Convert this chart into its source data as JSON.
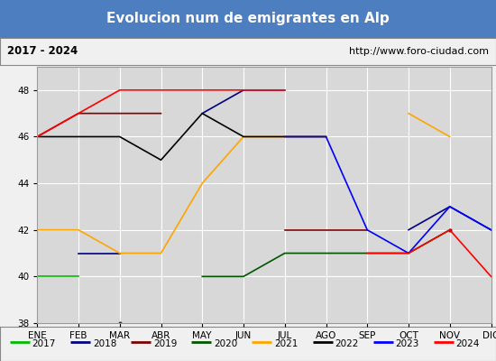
{
  "title": "Evolucion num de emigrantes en Alp",
  "subtitle_left": "2017 - 2024",
  "subtitle_right": "http://www.foro-ciudad.com",
  "xlabel_ticks": [
    "ENE",
    "FEB",
    "MAR",
    "ABR",
    "MAY",
    "JUN",
    "JUL",
    "AGO",
    "SEP",
    "OCT",
    "NOV",
    "DIC"
  ],
  "ylim": [
    38,
    49
  ],
  "yticks": [
    38,
    40,
    42,
    44,
    46,
    48
  ],
  "title_bg": "#4d7ebf",
  "title_color": "#ffffff",
  "plot_bg": "#d8d8d8",
  "grid_color": "#ffffff",
  "series": [
    {
      "year": "2017",
      "color": "#00bb00",
      "data": [
        40,
        40,
        null,
        null,
        null,
        null,
        null,
        null,
        null,
        null,
        null,
        null
      ]
    },
    {
      "year": "2018",
      "color": "#000080",
      "data": [
        null,
        41,
        41,
        null,
        47,
        48,
        48,
        null,
        null,
        42,
        43,
        42
      ]
    },
    {
      "year": "2019",
      "color": "#800000",
      "data": [
        46,
        47,
        47,
        47,
        null,
        null,
        42,
        42,
        42,
        null,
        42,
        null
      ]
    },
    {
      "year": "2020",
      "color": "#005500",
      "data": [
        null,
        null,
        38,
        null,
        40,
        40,
        41,
        41,
        41,
        41,
        42,
        null
      ]
    },
    {
      "year": "2021",
      "color": "#ffa500",
      "data": [
        42,
        42,
        41,
        41,
        44,
        46,
        46,
        46,
        null,
        47,
        46,
        null
      ]
    },
    {
      "year": "2022",
      "color": "#000000",
      "data": [
        46,
        46,
        46,
        45,
        47,
        46,
        46,
        46,
        null,
        null,
        null,
        null
      ]
    },
    {
      "year": "2023",
      "color": "#0000ff",
      "data": [
        null,
        null,
        null,
        null,
        null,
        null,
        46,
        46,
        42,
        41,
        43,
        42
      ]
    },
    {
      "year": "2024",
      "color": "#ff0000",
      "data": [
        46,
        47,
        48,
        48,
        48,
        48,
        48,
        null,
        41,
        41,
        42,
        40
      ]
    }
  ],
  "legend_order": [
    "2017",
    "2018",
    "2019",
    "2020",
    "2021",
    "2022",
    "2023",
    "2024"
  ],
  "legend_colors": [
    "#00bb00",
    "#000080",
    "#800000",
    "#005500",
    "#ffa500",
    "#000000",
    "#0000ff",
    "#ff0000"
  ]
}
